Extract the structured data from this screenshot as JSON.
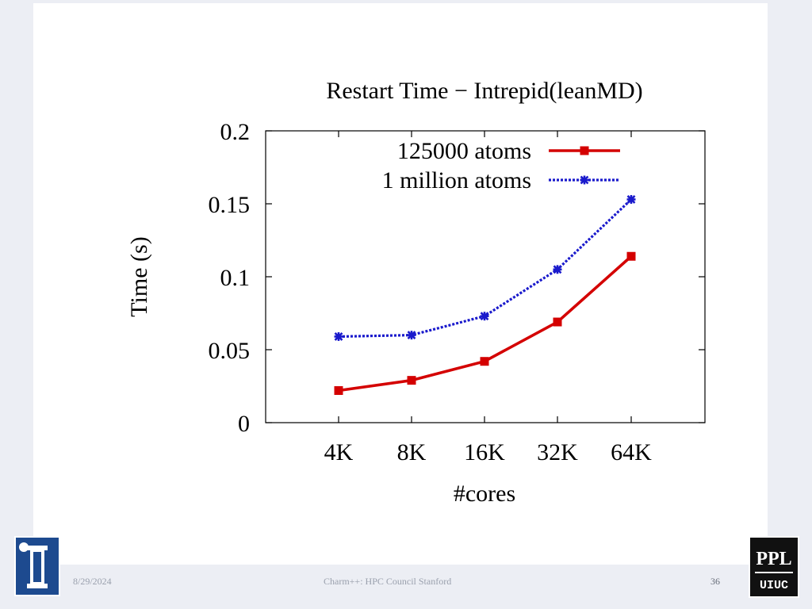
{
  "footer": {
    "date": "8/29/2024",
    "title": "Charm++: HPC Council Stanford",
    "page": "36"
  },
  "logos": {
    "left": "university-seal",
    "right_text": "PPL UIUC"
  },
  "colors": {
    "series1": "#d40000",
    "series2": "#1a1acc"
  },
  "chart_data": {
    "type": "line",
    "title": "Restart Time − Intrepid(leanMD)",
    "xlabel": "#cores",
    "ylabel": "Time (s)",
    "categories": [
      "4K",
      "8K",
      "16K",
      "32K",
      "64K"
    ],
    "ylim": [
      0,
      0.2
    ],
    "yticks": [
      "0",
      "0.05",
      "0.1",
      "0.15",
      "0.2"
    ],
    "legend_position": "top-right",
    "grid": false,
    "series": [
      {
        "name": "125000 atoms",
        "values": [
          0.022,
          0.029,
          0.042,
          0.069,
          0.114
        ],
        "marker": "square",
        "style": "solid"
      },
      {
        "name": "1 million atoms",
        "values": [
          0.059,
          0.06,
          0.073,
          0.105,
          0.153
        ],
        "marker": "star",
        "style": "dotted"
      }
    ]
  }
}
